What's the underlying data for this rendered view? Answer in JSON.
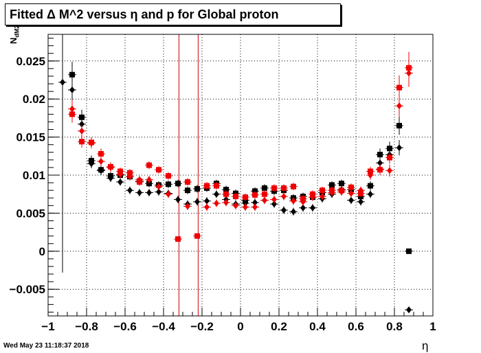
{
  "title": "Fitted Δ M^2 versus η and p for Global proton",
  "ylabel": "N",
  "ylabel_sub": "dM2",
  "xlabel": "η",
  "timestamp": "Wed May 23 11:18:37 2018",
  "chart_data": {
    "type": "scatter",
    "title": "Fitted Δ M^2 versus η and p for Global proton",
    "xlabel": "η",
    "ylabel": "N dM2",
    "xlim": [
      -1,
      1
    ],
    "ylim": [
      -0.0085,
      0.0285
    ],
    "grid": true,
    "x_ticks": [
      "−1",
      "−0.8",
      "−0.6",
      "−0.4",
      "−0.2",
      "0",
      "0.2",
      "0.4",
      "0.6",
      "0.8",
      "1"
    ],
    "x_tick_values": [
      -1,
      -0.8,
      -0.6,
      -0.4,
      -0.2,
      0,
      0.2,
      0.4,
      0.6,
      0.8,
      1
    ],
    "y_ticks": [
      "−0.005",
      "0",
      "0.005",
      "0.01",
      "0.015",
      "0.02",
      "0.025"
    ],
    "y_tick_values": [
      -0.005,
      0,
      0.005,
      0.01,
      0.015,
      0.02,
      0.025
    ],
    "vlines": [
      {
        "x": -0.32,
        "color": "#cc0000"
      },
      {
        "x": -0.22,
        "color": "#cc0000"
      }
    ],
    "series": [
      {
        "marker": "diamond",
        "color": "#000000",
        "points": [
          {
            "x": -0.925,
            "y": 0.0222,
            "err": 0.025
          },
          {
            "x": -0.875,
            "y": 0.0212,
            "err": 0.0017
          },
          {
            "x": -0.825,
            "y": 0.0167,
            "err": 0.0008
          },
          {
            "x": -0.775,
            "y": 0.0115,
            "err": 0.0006
          },
          {
            "x": -0.725,
            "y": 0.0106,
            "err": 0.0006
          },
          {
            "x": -0.675,
            "y": 0.0096,
            "err": 0.0005
          },
          {
            "x": -0.625,
            "y": 0.0091,
            "err": 0.0005
          },
          {
            "x": -0.575,
            "y": 0.008,
            "err": 0.0005
          },
          {
            "x": -0.525,
            "y": 0.0077,
            "err": 0.0005
          },
          {
            "x": -0.475,
            "y": 0.0077,
            "err": 0.0005
          },
          {
            "x": -0.425,
            "y": 0.0078,
            "err": 0.0005
          },
          {
            "x": -0.375,
            "y": 0.0076,
            "err": 0.0005
          },
          {
            "x": -0.325,
            "y": 0.0068,
            "err": 0.0005
          },
          {
            "x": -0.275,
            "y": 0.0062,
            "err": 0.0005
          },
          {
            "x": -0.225,
            "y": 0.0065,
            "err": 0.0005
          },
          {
            "x": -0.175,
            "y": 0.0066,
            "err": 0.0005
          },
          {
            "x": -0.125,
            "y": 0.0075,
            "err": 0.0005
          },
          {
            "x": -0.075,
            "y": 0.0068,
            "err": 0.0005
          },
          {
            "x": -0.025,
            "y": 0.0062,
            "err": 0.0005
          },
          {
            "x": 0.025,
            "y": 0.0063,
            "err": 0.0005
          },
          {
            "x": 0.075,
            "y": 0.0064,
            "err": 0.0005
          },
          {
            "x": 0.125,
            "y": 0.0067,
            "err": 0.0005
          },
          {
            "x": 0.175,
            "y": 0.0062,
            "err": 0.0005
          },
          {
            "x": 0.225,
            "y": 0.0054,
            "err": 0.0005
          },
          {
            "x": 0.275,
            "y": 0.0052,
            "err": 0.0005
          },
          {
            "x": 0.325,
            "y": 0.0057,
            "err": 0.0005
          },
          {
            "x": 0.375,
            "y": 0.0057,
            "err": 0.0005
          },
          {
            "x": 0.425,
            "y": 0.0069,
            "err": 0.0005
          },
          {
            "x": 0.475,
            "y": 0.0075,
            "err": 0.0005
          },
          {
            "x": 0.525,
            "y": 0.0081,
            "err": 0.0005
          },
          {
            "x": 0.575,
            "y": 0.0067,
            "err": 0.0005
          },
          {
            "x": 0.625,
            "y": 0.0065,
            "err": 0.0005
          },
          {
            "x": 0.675,
            "y": 0.0075,
            "err": 0.0005
          },
          {
            "x": 0.725,
            "y": 0.0116,
            "err": 0.0007
          },
          {
            "x": 0.775,
            "y": 0.0127,
            "err": 0.0008
          },
          {
            "x": 0.825,
            "y": 0.0136,
            "err": 0.001
          },
          {
            "x": 0.875,
            "y": -0.0077,
            "err": 0.0003
          }
        ]
      },
      {
        "marker": "square",
        "color": "#000000",
        "points": [
          {
            "x": -0.875,
            "y": 0.0232,
            "err": 0.0017
          },
          {
            "x": -0.825,
            "y": 0.0176,
            "err": 0.001
          },
          {
            "x": -0.775,
            "y": 0.0119,
            "err": 0.0007
          },
          {
            "x": -0.725,
            "y": 0.0107,
            "err": 0.0006
          },
          {
            "x": -0.675,
            "y": 0.0099,
            "err": 0.0005
          },
          {
            "x": -0.625,
            "y": 0.01,
            "err": 0.0005
          },
          {
            "x": -0.575,
            "y": 0.0098,
            "err": 0.0005
          },
          {
            "x": -0.525,
            "y": 0.0092,
            "err": 0.0005
          },
          {
            "x": -0.475,
            "y": 0.0089,
            "err": 0.0005
          },
          {
            "x": -0.425,
            "y": 0.0087,
            "err": 0.0005
          },
          {
            "x": -0.375,
            "y": 0.0088,
            "err": 0.0005
          },
          {
            "x": -0.325,
            "y": 0.0089,
            "err": 0.0005
          },
          {
            "x": -0.275,
            "y": 0.008,
            "err": 0.0005
          },
          {
            "x": -0.225,
            "y": 0.0082,
            "err": 0.0005
          },
          {
            "x": -0.175,
            "y": 0.0083,
            "err": 0.0005
          },
          {
            "x": -0.125,
            "y": 0.0089,
            "err": 0.0005
          },
          {
            "x": -0.075,
            "y": 0.0081,
            "err": 0.0005
          },
          {
            "x": -0.025,
            "y": 0.0076,
            "err": 0.0005
          },
          {
            "x": 0.025,
            "y": 0.0067,
            "err": 0.0005
          },
          {
            "x": 0.075,
            "y": 0.0079,
            "err": 0.0005
          },
          {
            "x": 0.125,
            "y": 0.0083,
            "err": 0.0005
          },
          {
            "x": 0.175,
            "y": 0.0079,
            "err": 0.0005
          },
          {
            "x": 0.225,
            "y": 0.008,
            "err": 0.0005
          },
          {
            "x": 0.275,
            "y": 0.007,
            "err": 0.0005
          },
          {
            "x": 0.325,
            "y": 0.0072,
            "err": 0.0005
          },
          {
            "x": 0.375,
            "y": 0.0071,
            "err": 0.0005
          },
          {
            "x": 0.425,
            "y": 0.0077,
            "err": 0.0005
          },
          {
            "x": 0.475,
            "y": 0.0087,
            "err": 0.0005
          },
          {
            "x": 0.525,
            "y": 0.0089,
            "err": 0.0005
          },
          {
            "x": 0.575,
            "y": 0.0081,
            "err": 0.0005
          },
          {
            "x": 0.625,
            "y": 0.0072,
            "err": 0.0005
          },
          {
            "x": 0.675,
            "y": 0.0086,
            "err": 0.0006
          },
          {
            "x": 0.725,
            "y": 0.0127,
            "err": 0.0008
          },
          {
            "x": 0.775,
            "y": 0.0135,
            "err": 0.0009
          },
          {
            "x": 0.825,
            "y": 0.0165,
            "err": 0.0012
          },
          {
            "x": 0.875,
            "y": 0.0,
            "err": 0.0003
          }
        ]
      },
      {
        "marker": "diamond",
        "color": "#ee0000",
        "points": [
          {
            "x": -0.875,
            "y": 0.0187,
            "err": 0.0012
          },
          {
            "x": -0.825,
            "y": 0.0158,
            "err": 0.0008
          },
          {
            "x": -0.775,
            "y": 0.0142,
            "err": 0.0007
          },
          {
            "x": -0.725,
            "y": 0.0118,
            "err": 0.0006
          },
          {
            "x": -0.675,
            "y": 0.011,
            "err": 0.0006
          },
          {
            "x": -0.625,
            "y": 0.0101,
            "err": 0.0005
          },
          {
            "x": -0.575,
            "y": 0.0098,
            "err": 0.0005
          },
          {
            "x": -0.525,
            "y": 0.0094,
            "err": 0.0005
          },
          {
            "x": -0.475,
            "y": 0.0094,
            "err": 0.0005
          },
          {
            "x": -0.425,
            "y": 0.0085,
            "err": 0.0005
          },
          {
            "x": -0.375,
            "y": 0.0075,
            "err": 0.0005
          },
          {
            "x": -0.275,
            "y": 0.0059,
            "err": 0.0005
          },
          {
            "x": -0.175,
            "y": 0.0058,
            "err": 0.0005
          },
          {
            "x": -0.125,
            "y": 0.0063,
            "err": 0.0005
          },
          {
            "x": -0.075,
            "y": 0.0064,
            "err": 0.0005
          },
          {
            "x": -0.025,
            "y": 0.006,
            "err": 0.0005
          },
          {
            "x": 0.025,
            "y": 0.0058,
            "err": 0.0005
          },
          {
            "x": 0.075,
            "y": 0.0058,
            "err": 0.0005
          },
          {
            "x": 0.125,
            "y": 0.0067,
            "err": 0.0005
          },
          {
            "x": 0.175,
            "y": 0.0068,
            "err": 0.0005
          },
          {
            "x": 0.225,
            "y": 0.0072,
            "err": 0.0005
          },
          {
            "x": 0.275,
            "y": 0.0066,
            "err": 0.0005
          },
          {
            "x": 0.325,
            "y": 0.0065,
            "err": 0.0005
          },
          {
            "x": 0.375,
            "y": 0.0071,
            "err": 0.0005
          },
          {
            "x": 0.425,
            "y": 0.0072,
            "err": 0.0005
          },
          {
            "x": 0.475,
            "y": 0.0077,
            "err": 0.0005
          },
          {
            "x": 0.525,
            "y": 0.0078,
            "err": 0.0005
          },
          {
            "x": 0.575,
            "y": 0.0076,
            "err": 0.0005
          },
          {
            "x": 0.625,
            "y": 0.008,
            "err": 0.0005
          },
          {
            "x": 0.675,
            "y": 0.01,
            "err": 0.0006
          },
          {
            "x": 0.725,
            "y": 0.0108,
            "err": 0.0007
          },
          {
            "x": 0.775,
            "y": 0.0106,
            "err": 0.0008
          },
          {
            "x": 0.825,
            "y": 0.0191,
            "err": 0.0015
          },
          {
            "x": 0.875,
            "y": 0.0234,
            "err": 0.0018
          }
        ]
      },
      {
        "marker": "square",
        "color": "#ee0000",
        "points": [
          {
            "x": -0.875,
            "y": 0.018,
            "err": 0.0011
          },
          {
            "x": -0.825,
            "y": 0.0144,
            "err": 0.0008
          },
          {
            "x": -0.775,
            "y": 0.0143,
            "err": 0.0007
          },
          {
            "x": -0.725,
            "y": 0.0128,
            "err": 0.0007
          },
          {
            "x": -0.675,
            "y": 0.0111,
            "err": 0.0006
          },
          {
            "x": -0.625,
            "y": 0.0105,
            "err": 0.0005
          },
          {
            "x": -0.575,
            "y": 0.0103,
            "err": 0.0005
          },
          {
            "x": -0.525,
            "y": 0.0091,
            "err": 0.0005
          },
          {
            "x": -0.475,
            "y": 0.0113,
            "err": 0.0005
          },
          {
            "x": -0.425,
            "y": 0.0107,
            "err": 0.0005
          },
          {
            "x": -0.375,
            "y": 0.0099,
            "err": 0.0005
          },
          {
            "x": -0.325,
            "y": 0.0016,
            "err": 0.0003
          },
          {
            "x": -0.275,
            "y": 0.0091,
            "err": 0.0005
          },
          {
            "x": -0.225,
            "y": 0.002,
            "err": 0.0003
          },
          {
            "x": -0.175,
            "y": 0.0086,
            "err": 0.0005
          },
          {
            "x": -0.125,
            "y": 0.0086,
            "err": 0.0005
          },
          {
            "x": -0.075,
            "y": 0.0075,
            "err": 0.0005
          },
          {
            "x": -0.025,
            "y": 0.0072,
            "err": 0.0005
          },
          {
            "x": 0.025,
            "y": 0.0071,
            "err": 0.0005
          },
          {
            "x": 0.075,
            "y": 0.0074,
            "err": 0.0005
          },
          {
            "x": 0.125,
            "y": 0.0075,
            "err": 0.0005
          },
          {
            "x": 0.175,
            "y": 0.0083,
            "err": 0.0005
          },
          {
            "x": 0.225,
            "y": 0.0083,
            "err": 0.0005
          },
          {
            "x": 0.275,
            "y": 0.0085,
            "err": 0.0005
          },
          {
            "x": 0.325,
            "y": 0.0069,
            "err": 0.0005
          },
          {
            "x": 0.375,
            "y": 0.0075,
            "err": 0.0005
          },
          {
            "x": 0.425,
            "y": 0.008,
            "err": 0.0005
          },
          {
            "x": 0.475,
            "y": 0.008,
            "err": 0.0005
          },
          {
            "x": 0.525,
            "y": 0.008,
            "err": 0.0005
          },
          {
            "x": 0.575,
            "y": 0.0084,
            "err": 0.0005
          },
          {
            "x": 0.625,
            "y": 0.0076,
            "err": 0.0005
          },
          {
            "x": 0.675,
            "y": 0.0105,
            "err": 0.0006
          },
          {
            "x": 0.725,
            "y": 0.0107,
            "err": 0.0007
          },
          {
            "x": 0.775,
            "y": 0.0123,
            "err": 0.0008
          },
          {
            "x": 0.825,
            "y": 0.0215,
            "err": 0.0016
          },
          {
            "x": 0.875,
            "y": 0.0241,
            "err": 0.0021
          }
        ]
      }
    ]
  }
}
